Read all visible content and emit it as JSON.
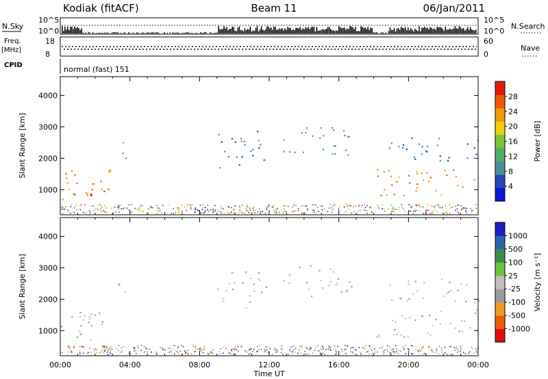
{
  "header": {
    "station": "Kodiak (fitACF)",
    "beam": "Beam 11",
    "date": "06/Jan/2011"
  },
  "strips": {
    "nsky": {
      "left_label": "N.Sky",
      "right_label": "N.Search",
      "ticks_left": [
        "10^5",
        "10^0"
      ],
      "ticks_right": [
        "10^5",
        "10^0"
      ]
    },
    "freq": {
      "left_label_1": "Freq.",
      "left_label_2": "[MHz]",
      "right_label": "Nave",
      "ticks_left": [
        "18",
        "8"
      ],
      "ticks_right": [
        "60",
        "0"
      ]
    },
    "cpid": {
      "label": "CPID",
      "text": "normal (fast) 151"
    }
  },
  "colors": {
    "power": [
      "#0a17d8",
      "#2446b8",
      "#4a8f9a",
      "#4eae6a",
      "#7fc23c",
      "#f1d100",
      "#f39a00",
      "#ef5a00",
      "#e61a0b"
    ],
    "velocity": [
      "#e40d0d",
      "#f05b00",
      "#f09a20",
      "#9a9a9a",
      "#bfbfbf",
      "#6fc23a",
      "#3a8a52",
      "#2c63b0",
      "#1a1fc8"
    ]
  },
  "chart_data": [
    {
      "type": "heatmap",
      "name": "power",
      "ylabel": "Slant Range [km]",
      "yticks": [
        1000,
        2000,
        3000,
        4000
      ],
      "ylim": [
        200,
        4600
      ],
      "xlim": [
        0,
        24
      ],
      "colorbar": {
        "label": "Power [dB]",
        "ticks": [
          4,
          8,
          12,
          16,
          20,
          24,
          28
        ],
        "range": [
          0,
          32
        ]
      },
      "echo_regions": [
        {
          "t0": 0.0,
          "t1": 3.0,
          "r0": 700,
          "r1": 1700,
          "level": 24
        },
        {
          "t0": 0.6,
          "t1": 2.6,
          "r0": 800,
          "r1": 1300,
          "level": 28
        },
        {
          "t0": 3.2,
          "t1": 3.8,
          "r0": 1900,
          "r1": 2600,
          "level": 12
        },
        {
          "t0": 9.0,
          "t1": 12.0,
          "r0": 1700,
          "r1": 2900,
          "level": 8
        },
        {
          "t0": 12.8,
          "t1": 16.8,
          "r0": 2100,
          "r1": 3100,
          "level": 10
        },
        {
          "t0": 18.0,
          "t1": 24.0,
          "r0": 800,
          "r1": 1700,
          "level": 24
        },
        {
          "t0": 18.8,
          "t1": 24.0,
          "r0": 1900,
          "r1": 2700,
          "level": 8
        }
      ]
    },
    {
      "type": "heatmap",
      "name": "velocity",
      "ylabel": "Slant Range [km]",
      "yticks": [
        1000,
        2000,
        3000,
        4000
      ],
      "ylim": [
        200,
        4600
      ],
      "xlim": [
        0,
        24
      ],
      "colorbar": {
        "label": "Velocity [m s⁻¹]",
        "ticks": [
          1000,
          500,
          100,
          25,
          -25,
          -100,
          -500,
          -1000
        ],
        "range": [
          -1200,
          1200
        ]
      },
      "echo_regions": [
        {
          "t0": 0.0,
          "t1": 3.0,
          "r0": 700,
          "r1": 1700,
          "level": 0
        },
        {
          "t0": 1.0,
          "t1": 2.4,
          "r0": 1200,
          "r1": 1600,
          "level": 150
        },
        {
          "t0": 3.2,
          "t1": 3.8,
          "r0": 1900,
          "r1": 2600,
          "level": 0
        },
        {
          "t0": 9.0,
          "t1": 12.0,
          "r0": 1700,
          "r1": 2900,
          "level": 0
        },
        {
          "t0": 12.8,
          "t1": 16.8,
          "r0": 2100,
          "r1": 3100,
          "level": 0
        },
        {
          "t0": 18.0,
          "t1": 24.0,
          "r0": 800,
          "r1": 1700,
          "level": 0
        },
        {
          "t0": 18.8,
          "t1": 24.0,
          "r0": 1900,
          "r1": 2700,
          "level": -50
        }
      ]
    }
  ],
  "xaxis": {
    "label": "Time UT",
    "ticks": [
      "00:00",
      "04:00",
      "08:00",
      "12:00",
      "16:00",
      "20:00",
      "00:00"
    ],
    "tick_hours": [
      0,
      4,
      8,
      12,
      16,
      20,
      24
    ]
  }
}
